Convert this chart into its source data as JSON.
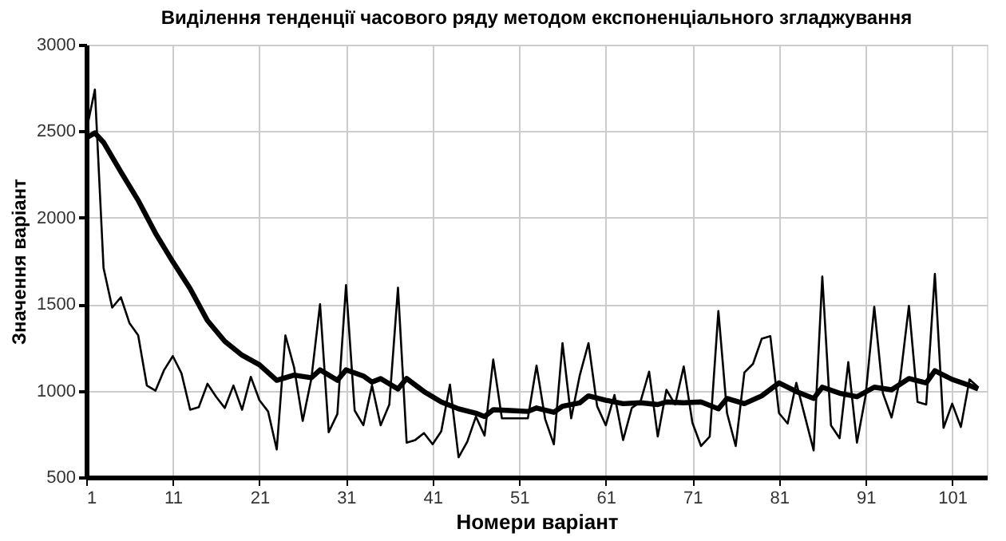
{
  "chart_data": {
    "type": "line",
    "title": "Виділення тенденції часового ряду методом експоненціального згладжування",
    "xlabel": "Номери варіант",
    "ylabel": "Значення варіант",
    "xlim": [
      1,
      105
    ],
    "xticks": [
      1,
      11,
      21,
      31,
      41,
      51,
      61,
      71,
      81,
      91,
      101
    ],
    "ylim": [
      500,
      3000
    ],
    "yticks": [
      500,
      1000,
      1500,
      2000,
      2500,
      3000
    ],
    "grid": true,
    "marker": "none",
    "line_style": "solid",
    "series": [
      {
        "color": "#000000",
        "x": [
          1,
          2,
          3,
          4,
          5,
          6,
          7,
          8,
          9,
          10,
          11,
          12,
          13,
          14,
          15,
          16,
          17,
          18,
          19,
          20,
          21,
          22,
          23,
          24,
          25,
          26,
          27,
          28,
          29,
          30,
          31,
          32,
          33,
          34,
          35,
          36,
          37,
          38,
          39,
          40,
          41,
          42,
          43,
          44,
          45,
          46,
          47,
          48,
          49,
          50,
          51,
          52,
          53,
          54,
          55,
          56,
          57,
          58,
          59,
          60,
          61,
          62,
          63,
          64,
          65,
          66,
          67,
          68,
          69,
          70,
          71,
          72,
          73,
          74,
          75,
          76,
          77,
          78,
          79,
          80,
          81,
          82,
          83,
          84,
          85,
          86,
          87,
          88,
          89,
          90,
          91,
          92,
          93,
          94,
          95,
          96,
          97,
          98,
          99,
          100,
          101,
          102,
          103,
          104
        ],
        "values": [
          2500,
          2740,
          1710,
          1480,
          1540,
          1390,
          1320,
          1030,
          1000,
          1120,
          1200,
          1100,
          890,
          905,
          1040,
          965,
          900,
          1030,
          890,
          1080,
          945,
          880,
          660,
          1320,
          1135,
          825,
          1070,
          1500,
          760,
          865,
          1610,
          885,
          800,
          1030,
          800,
          920,
          1595,
          700,
          715,
          755,
          690,
          765,
          1035,
          615,
          705,
          850,
          740,
          1180,
          840,
          840,
          840,
          840,
          1145,
          835,
          690,
          1275,
          840,
          1090,
          1275,
          910,
          800,
          975,
          715,
          900,
          935,
          1110,
          735,
          1005,
          920,
          1140,
          815,
          680,
          735,
          1460,
          870,
          680,
          1105,
          1155,
          1300,
          1315,
          870,
          810,
          1045,
          850,
          655,
          1660,
          800,
          725,
          1165,
          700,
          970,
          1485,
          985,
          845,
          1070,
          1490,
          935,
          920,
          1675,
          785,
          925,
          790,
          1065,
          1020
        ]
      },
      {
        "color": "#000000",
        "x": [
          1,
          2,
          3,
          5,
          7,
          9,
          11,
          13,
          15,
          17,
          19,
          21,
          23,
          25,
          27,
          28,
          30,
          31,
          33,
          34,
          35,
          37,
          38,
          40,
          42,
          44,
          46,
          47,
          48,
          50,
          52,
          53,
          55,
          56,
          58,
          59,
          61,
          63,
          65,
          67,
          68,
          70,
          72,
          74,
          75,
          77,
          79,
          81,
          83,
          85,
          86,
          88,
          90,
          92,
          94,
          96,
          98,
          99,
          101,
          103,
          104
        ],
        "values": [
          2460,
          2490,
          2435,
          2265,
          2100,
          1910,
          1745,
          1590,
          1405,
          1285,
          1205,
          1150,
          1060,
          1090,
          1075,
          1120,
          1060,
          1120,
          1085,
          1050,
          1070,
          1010,
          1070,
          995,
          935,
          895,
          870,
          850,
          890,
          885,
          880,
          900,
          875,
          910,
          930,
          970,
          945,
          925,
          930,
          920,
          935,
          930,
          935,
          895,
          955,
          925,
          970,
          1045,
          995,
          955,
          1020,
          985,
          965,
          1020,
          1005,
          1070,
          1045,
          1115,
          1065,
          1030,
          1010
        ]
      }
    ]
  }
}
